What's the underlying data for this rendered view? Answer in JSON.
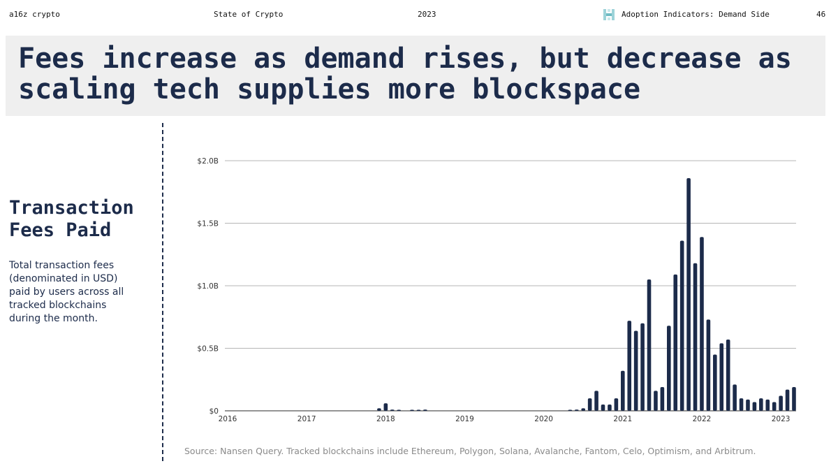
{
  "header": {
    "brand": "a16z crypto",
    "report": "State of Crypto",
    "year": "2023",
    "section": "Adoption Indicators: Demand Side",
    "page_number": "46",
    "logo_icon": "a16z-logo-icon"
  },
  "slide": {
    "title": "Fees increase as demand rises, but decrease as scaling tech supplies more blockspace"
  },
  "panel": {
    "title": "Transaction Fees Paid",
    "description": "Total transaction fees (denominated in USD) paid by users across all tracked blockchains during the month."
  },
  "source": "Source: Nansen Query. Tracked blockchains include Ethereum, Polygon, Solana, Avalanche, Fantom, Celo, Optimism, and Arbitrum.",
  "colors": {
    "bar": "#1c2b4a",
    "grid": "#b5b5b5",
    "title_bg": "#efefef",
    "text": "#1c2b4a"
  },
  "chart_data": {
    "type": "bar",
    "title": "",
    "xlabel": "",
    "ylabel": "",
    "ylim": [
      0,
      2.0
    ],
    "y_unit": "USD billions",
    "yticks": [
      {
        "value": 0,
        "label": "$0"
      },
      {
        "value": 0.5,
        "label": "$0.5B"
      },
      {
        "value": 1.0,
        "label": "$1.0B"
      },
      {
        "value": 1.5,
        "label": "$1.5B"
      },
      {
        "value": 2.0,
        "label": "$2.0B"
      }
    ],
    "xticks": [
      "2016",
      "2017",
      "2018",
      "2019",
      "2020",
      "2021",
      "2022",
      "2023"
    ],
    "x_start": "2016-01",
    "grid": true,
    "series": [
      {
        "months": [
          "2017-12",
          "2018-01",
          "2018-02",
          "2018-03",
          "2018-05",
          "2018-06",
          "2018-07",
          "2020-05",
          "2020-06",
          "2020-07",
          "2020-08",
          "2020-09",
          "2020-10",
          "2020-11",
          "2020-12",
          "2021-01",
          "2021-02",
          "2021-03",
          "2021-04",
          "2021-05",
          "2021-06",
          "2021-07",
          "2021-08",
          "2021-09",
          "2021-10",
          "2021-11",
          "2021-12",
          "2022-01",
          "2022-02",
          "2022-03",
          "2022-04",
          "2022-05",
          "2022-06",
          "2022-07",
          "2022-08",
          "2022-09",
          "2022-10",
          "2022-11",
          "2022-12",
          "2023-01",
          "2023-02",
          "2023-03"
        ],
        "values": [
          0.02,
          0.06,
          0.01,
          0.005,
          0.005,
          0.005,
          0.01,
          0.005,
          0.01,
          0.02,
          0.1,
          0.16,
          0.05,
          0.05,
          0.1,
          0.32,
          0.72,
          0.64,
          0.7,
          1.05,
          0.16,
          0.19,
          0.68,
          1.09,
          1.36,
          1.86,
          1.18,
          1.39,
          0.73,
          0.45,
          0.54,
          0.57,
          0.21,
          0.1,
          0.09,
          0.07,
          0.1,
          0.09,
          0.07,
          0.12,
          0.17,
          0.19
        ]
      }
    ]
  }
}
